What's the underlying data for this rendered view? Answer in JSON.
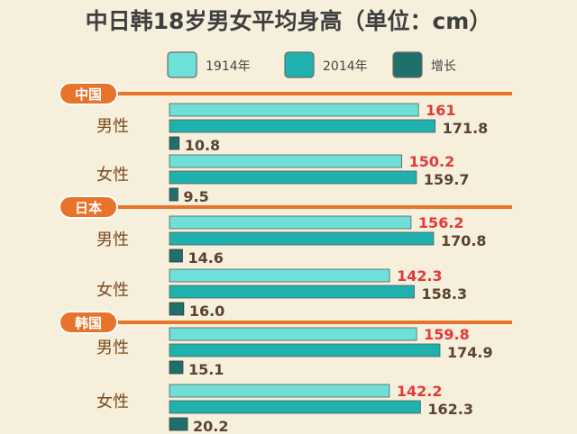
{
  "colors": {
    "background": "#f6efdc",
    "bar_1914": "#6fe0d8",
    "bar_2014": "#1fb1ad",
    "bar_increase": "#1f6f6a",
    "accent": "#e8742c",
    "value_1914": "#e23a3a",
    "value_other": "#5a4330"
  },
  "chart_data": {
    "type": "bar",
    "orientation": "horizontal",
    "title": "中日韩18岁男女平均身高（单位：cm）",
    "legend": {
      "position": "top",
      "items": [
        "1914年",
        "2014年",
        "增长"
      ]
    },
    "groups": [
      {
        "name": "中国",
        "rows": [
          {
            "label": "男性",
            "v1914": 161,
            "v2014": 171.8,
            "increase": 10.8
          },
          {
            "label": "女性",
            "v1914": 150.2,
            "v2014": 159.7,
            "increase": 9.5
          }
        ]
      },
      {
        "name": "日本",
        "rows": [
          {
            "label": "男性",
            "v1914": 156.2,
            "v2014": 170.8,
            "increase": 14.6
          },
          {
            "label": "女性",
            "v1914": 142.3,
            "v2014": 158.3,
            "increase": 16.0
          }
        ]
      },
      {
        "name": "韩国",
        "rows": [
          {
            "label": "男性",
            "v1914": 159.8,
            "v2014": 174.9,
            "increase": 15.1
          },
          {
            "label": "女性",
            "v1914": 142.2,
            "v2014": 162.3,
            "increase": 20.2
          }
        ]
      }
    ],
    "value_labels": [
      [
        "161",
        "171.8",
        "10.8",
        "150.2",
        "159.7",
        "9.5"
      ],
      [
        "156.2",
        "170.8",
        "14.6",
        "142.3",
        "158.3",
        "16.0"
      ],
      [
        "159.8",
        "174.9",
        "15.1",
        "142.2",
        "162.3",
        "20.2"
      ]
    ],
    "grid": false
  }
}
